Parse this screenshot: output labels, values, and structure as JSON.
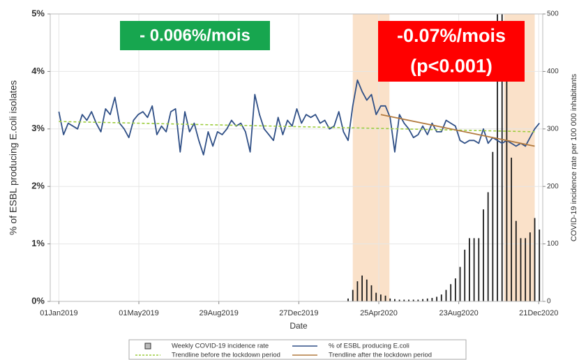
{
  "chart_data": {
    "type": "combo",
    "xlabel": "Date",
    "ylabel": "% of ESBL producing E.coli isolates",
    "y2label": "COVID-19 incidence rate per 100 000 inhabitants",
    "xlim": [
      "2018-12-19",
      "2020-12-27"
    ],
    "xticks": [
      {
        "value": "2019-01-01",
        "label": "01Jan2019"
      },
      {
        "value": "2019-05-01",
        "label": "01May2019"
      },
      {
        "value": "2019-08-29",
        "label": "29Aug2019"
      },
      {
        "value": "2019-12-27",
        "label": "27Dec2019"
      },
      {
        "value": "2020-04-25",
        "label": "25Apr2020"
      },
      {
        "value": "2020-08-23",
        "label": "23Aug2020"
      },
      {
        "value": "2020-12-21",
        "label": "21Dec2020"
      }
    ],
    "ylim": [
      0,
      5
    ],
    "yticks": [
      {
        "value": 0,
        "label": "0%"
      },
      {
        "value": 1,
        "label": "1%"
      },
      {
        "value": 2,
        "label": "2%"
      },
      {
        "value": 3,
        "label": "3%"
      },
      {
        "value": 4,
        "label": "4%"
      },
      {
        "value": 5,
        "label": "5%"
      }
    ],
    "y2lim": [
      0,
      500
    ],
    "y2ticks": [
      0,
      100,
      200,
      300,
      400,
      500
    ],
    "grid": true,
    "shaded_periods": [
      [
        "2020-03-17",
        "2020-05-11"
      ],
      [
        "2020-10-30",
        "2020-12-15"
      ]
    ],
    "shade_color": "#f9dcc0",
    "x": [
      "2019-01-01",
      "2019-01-08",
      "2019-01-15",
      "2019-01-22",
      "2019-01-29",
      "2019-02-05",
      "2019-02-12",
      "2019-02-19",
      "2019-02-26",
      "2019-03-05",
      "2019-03-12",
      "2019-03-19",
      "2019-03-26",
      "2019-04-02",
      "2019-04-09",
      "2019-04-16",
      "2019-04-23",
      "2019-04-30",
      "2019-05-07",
      "2019-05-14",
      "2019-05-21",
      "2019-05-28",
      "2019-06-04",
      "2019-06-11",
      "2019-06-18",
      "2019-06-25",
      "2019-07-02",
      "2019-07-09",
      "2019-07-16",
      "2019-07-23",
      "2019-07-30",
      "2019-08-06",
      "2019-08-13",
      "2019-08-20",
      "2019-08-27",
      "2019-09-03",
      "2019-09-10",
      "2019-09-17",
      "2019-09-24",
      "2019-10-01",
      "2019-10-08",
      "2019-10-15",
      "2019-10-22",
      "2019-10-29",
      "2019-11-05",
      "2019-11-12",
      "2019-11-19",
      "2019-11-26",
      "2019-12-03",
      "2019-12-10",
      "2019-12-17",
      "2019-12-24",
      "2019-12-31",
      "2020-01-07",
      "2020-01-14",
      "2020-01-21",
      "2020-01-28",
      "2020-02-04",
      "2020-02-11",
      "2020-02-18",
      "2020-02-25",
      "2020-03-03",
      "2020-03-10",
      "2020-03-17",
      "2020-03-24",
      "2020-03-31",
      "2020-04-07",
      "2020-04-14",
      "2020-04-21",
      "2020-04-28",
      "2020-05-05",
      "2020-05-12",
      "2020-05-19",
      "2020-05-26",
      "2020-06-02",
      "2020-06-09",
      "2020-06-16",
      "2020-06-23",
      "2020-06-30",
      "2020-07-07",
      "2020-07-14",
      "2020-07-21",
      "2020-07-28",
      "2020-08-04",
      "2020-08-11",
      "2020-08-18",
      "2020-08-25",
      "2020-09-01",
      "2020-09-08",
      "2020-09-15",
      "2020-09-22",
      "2020-09-29",
      "2020-10-06",
      "2020-10-13",
      "2020-10-20",
      "2020-10-27",
      "2020-11-03",
      "2020-11-10",
      "2020-11-17",
      "2020-11-24",
      "2020-12-01",
      "2020-12-08",
      "2020-12-15",
      "2020-12-22"
    ],
    "series": [
      {
        "name": "Weekly COVID-19 incidence rate",
        "type": "bar",
        "axis": "y2",
        "color": "#1a1a1a",
        "values": [
          0,
          0,
          0,
          0,
          0,
          0,
          0,
          0,
          0,
          0,
          0,
          0,
          0,
          0,
          0,
          0,
          0,
          0,
          0,
          0,
          0,
          0,
          0,
          0,
          0,
          0,
          0,
          0,
          0,
          0,
          0,
          0,
          0,
          0,
          0,
          0,
          0,
          0,
          0,
          0,
          0,
          0,
          0,
          0,
          0,
          0,
          0,
          0,
          0,
          0,
          0,
          0,
          0,
          0,
          0,
          0,
          0,
          0,
          0,
          0,
          0,
          0,
          5,
          20,
          35,
          45,
          38,
          28,
          15,
          12,
          10,
          5,
          4,
          3,
          3,
          3,
          3,
          3,
          4,
          5,
          6,
          8,
          12,
          20,
          30,
          40,
          60,
          90,
          110,
          110,
          110,
          160,
          190,
          260,
          520,
          505,
          390,
          250,
          140,
          110,
          110,
          120,
          145,
          125
        ]
      },
      {
        "name": "% of ESBL producing E.coli",
        "type": "line",
        "color": "#2f4f86",
        "values": [
          3.3,
          2.9,
          3.1,
          3.05,
          3.0,
          3.25,
          3.15,
          3.3,
          3.1,
          2.95,
          3.35,
          3.25,
          3.55,
          3.1,
          3.0,
          2.85,
          3.15,
          3.25,
          3.3,
          3.2,
          3.4,
          2.9,
          3.05,
          2.95,
          3.3,
          3.35,
          2.6,
          3.3,
          2.95,
          3.1,
          2.8,
          2.55,
          2.95,
          2.7,
          2.95,
          2.9,
          3.0,
          3.15,
          3.05,
          3.1,
          2.95,
          2.6,
          3.6,
          3.25,
          3.0,
          2.9,
          2.8,
          3.2,
          2.9,
          3.15,
          3.05,
          3.35,
          3.1,
          3.25,
          3.2,
          3.25,
          3.1,
          3.15,
          3.0,
          3.05,
          3.3,
          2.95,
          2.8,
          3.4,
          3.85,
          3.65,
          3.5,
          3.6,
          3.25,
          3.4,
          3.4,
          3.2,
          2.6,
          3.25,
          3.1,
          3.0,
          2.85,
          2.9,
          3.05,
          2.9,
          3.1,
          2.95,
          2.95,
          3.15,
          3.1,
          3.05,
          2.8,
          2.75,
          2.8,
          2.8,
          2.75,
          3.0,
          2.75,
          2.85,
          2.8,
          2.75,
          2.8,
          2.75,
          2.7,
          2.75,
          2.7,
          2.85,
          3.0,
          3.1
        ]
      },
      {
        "name": "Trendline before the lockdown period",
        "type": "line",
        "dashed": true,
        "color": "#9ccc3c",
        "x": [
          "2019-01-01",
          "2020-12-15"
        ],
        "values": [
          3.13,
          2.95
        ]
      },
      {
        "name": "Trendline after the lockdown period",
        "type": "line",
        "color": "#b27a3e",
        "x": [
          "2020-04-28",
          "2020-12-15"
        ],
        "values": [
          3.25,
          2.7
        ]
      }
    ],
    "annotations": [
      {
        "lines": [
          "- 0.006%/mois"
        ],
        "color": "#17a64f"
      },
      {
        "lines": [
          "-0.07%/mois",
          "(p<0.001)"
        ],
        "color": "#ff0000"
      }
    ]
  }
}
